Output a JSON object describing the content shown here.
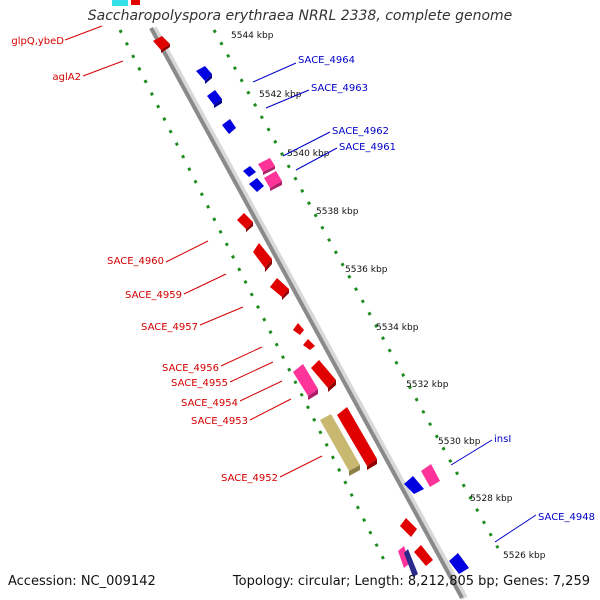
{
  "title": "Saccharopolyspora erythraea NRRL 2338, complete genome",
  "footer": {
    "accession": "Accession: NC_009142",
    "summary": "Topology: circular; Length: 8,212,805 bp; Genes: 7,259"
  },
  "ticks": [
    "5544 kbp",
    "5542 kbp",
    "5540 kbp",
    "5538 kbp",
    "5536 kbp",
    "5534 kbp",
    "5532 kbp",
    "5530 kbp",
    "5528 kbp",
    "5526 kbp"
  ],
  "left_labels": [
    "glpQ,ybeD",
    "aglA2",
    "SACE_4960",
    "SACE_4959",
    "SACE_4957",
    "SACE_4956",
    "SACE_4955",
    "SACE_4954",
    "SACE_4953",
    "SACE_4952"
  ],
  "right_labels": [
    "SACE_4964",
    "SACE_4963",
    "SACE_4962",
    "SACE_4961",
    "insI",
    "SACE_4948"
  ],
  "colors": {
    "backbone": "#8a8a8a",
    "dots": "#1e8c1e",
    "reverse_strand_gene": "#e00000",
    "forward_strand_gene": "#0000e0",
    "pseudo_gene": "#ff3399",
    "rna_gene": "#c8b870",
    "other": "#33e0e8",
    "red_label": "#d40000",
    "blue_label": "#0000c8"
  }
}
